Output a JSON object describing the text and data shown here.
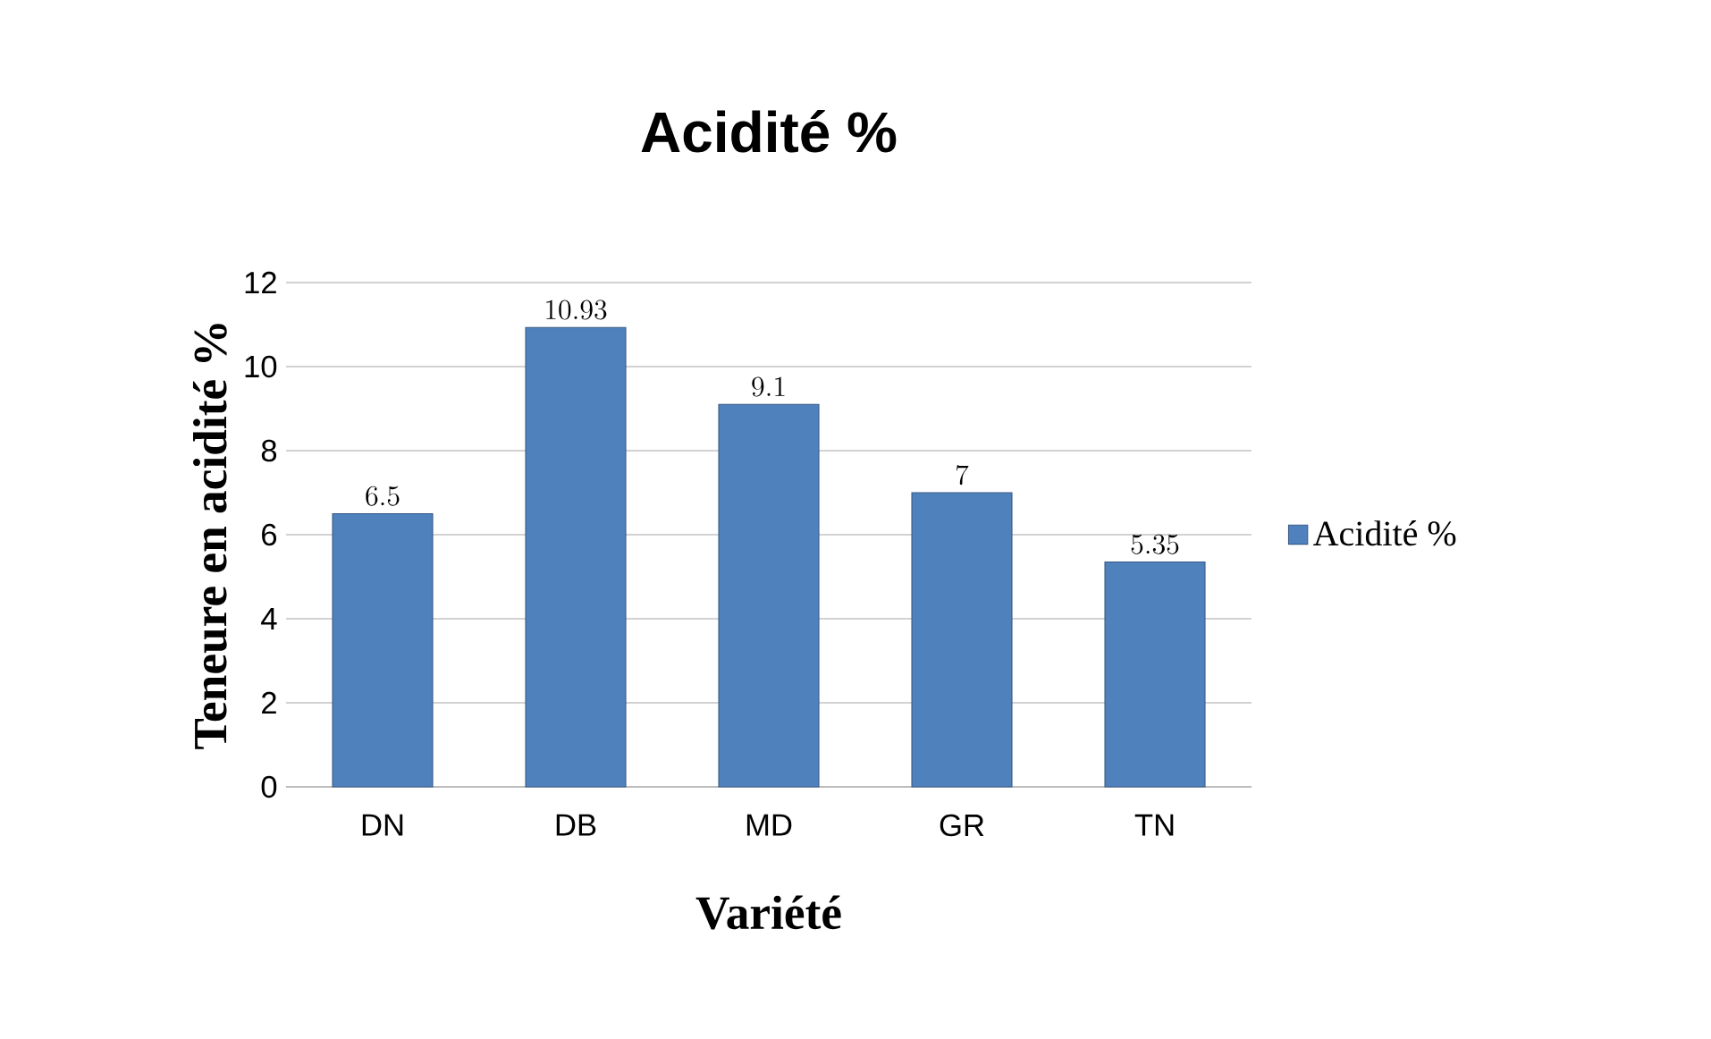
{
  "chart_data": {
    "type": "bar",
    "title": "Acidité %",
    "xlabel": "Variété",
    "ylabel": "Teneure en acidité %",
    "categories": [
      "DN",
      "DB",
      "MD",
      "GR",
      "TN"
    ],
    "series": [
      {
        "name": "Acidité %",
        "color": "#4f81bd",
        "values": [
          6.5,
          10.93,
          9.1,
          7,
          5.35
        ]
      }
    ],
    "ylim": [
      0,
      12
    ],
    "yticks": [
      0,
      2,
      4,
      6,
      8,
      10,
      12
    ],
    "grid": "y",
    "legend": "right",
    "data_labels": true
  }
}
